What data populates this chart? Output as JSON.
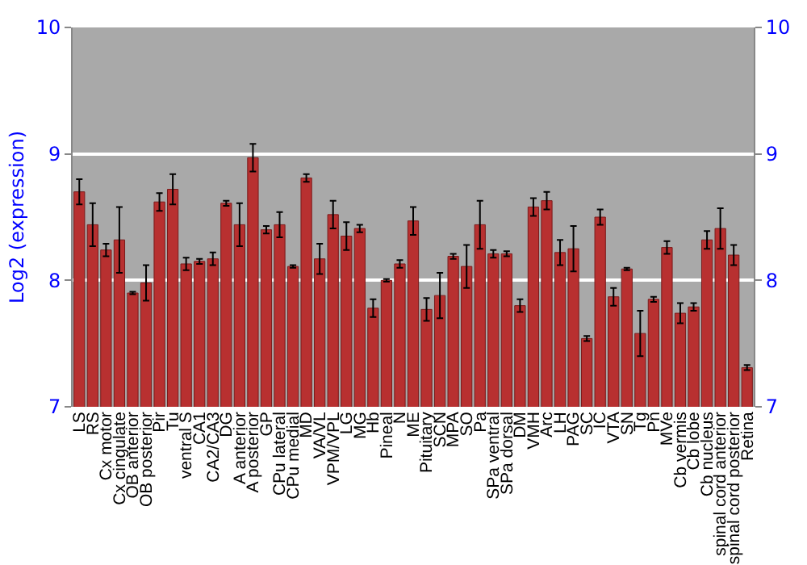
{
  "chart_data": {
    "type": "bar",
    "ylabel": "Log2 (expression)",
    "categories": [
      "LS",
      "RS",
      "Cx motor",
      "Cx cingulate",
      "OB anterior",
      "OB posterior",
      "Pir",
      "Tu",
      "ventral S",
      "CA1",
      "CA2/CA3",
      "DG",
      "A anterior",
      "A posterior",
      "GP",
      "CPu lateral",
      "CPu medial",
      "MD",
      "VA/VL",
      "VPM/VPL",
      "LG",
      "MG",
      "Hb",
      "Pineal",
      "N",
      "ME",
      "Pituitary",
      "SCN",
      "MPA",
      "SO",
      "Pa",
      "SPa ventral",
      "SPa dorsal",
      "DM",
      "VMH",
      "Arc",
      "LH",
      "PAG",
      "SC",
      "IC",
      "VTA",
      "SN",
      "Tg",
      "Pn",
      "MVe",
      "Cb vermis",
      "Cb lobe",
      "Cb nucleus",
      "spinal cord anterior",
      "spinal cord posterior",
      "Retina"
    ],
    "values": [
      8.7,
      8.44,
      8.24,
      8.32,
      7.9,
      7.98,
      8.62,
      8.72,
      8.13,
      8.15,
      8.17,
      8.61,
      8.44,
      8.97,
      8.4,
      8.44,
      8.11,
      8.81,
      8.17,
      8.52,
      8.35,
      8.41,
      7.78,
      8.0,
      8.13,
      8.47,
      7.77,
      7.88,
      8.19,
      8.11,
      8.44,
      8.21,
      8.21,
      7.8,
      8.58,
      8.63,
      8.22,
      8.25,
      7.54,
      8.5,
      7.87,
      8.09,
      7.58,
      7.85,
      8.26,
      7.74,
      7.79,
      8.32,
      8.41,
      8.2,
      7.31
    ],
    "errors": [
      0.1,
      0.17,
      0.05,
      0.26,
      0.01,
      0.14,
      0.07,
      0.12,
      0.05,
      0.02,
      0.05,
      0.02,
      0.17,
      0.11,
      0.03,
      0.1,
      0.01,
      0.03,
      0.12,
      0.11,
      0.11,
      0.03,
      0.07,
      0.01,
      0.03,
      0.11,
      0.09,
      0.18,
      0.02,
      0.17,
      0.19,
      0.03,
      0.02,
      0.05,
      0.07,
      0.07,
      0.1,
      0.18,
      0.02,
      0.06,
      0.07,
      0.01,
      0.18,
      0.02,
      0.05,
      0.08,
      0.03,
      0.07,
      0.16,
      0.08,
      0.02
    ],
    "color": "#b83030",
    "ylim": [
      7,
      10
    ],
    "yticks": [
      7,
      8,
      9,
      10
    ],
    "y2lim": [
      7,
      10
    ],
    "y2ticks": [
      7,
      8,
      9,
      10
    ],
    "grid": "y"
  }
}
